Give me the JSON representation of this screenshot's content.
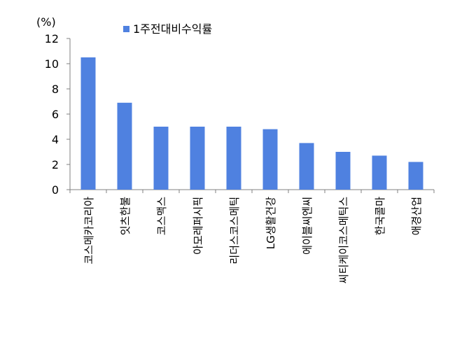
{
  "chart_data": {
    "type": "bar",
    "unit_label": "(%)",
    "categories": [
      "코스메카코리아",
      "잇츠한불",
      "코스맥스",
      "아모레퍼시픽",
      "리더스코스메틱",
      "LG생활건강",
      "에이블씨엔씨",
      "씨티케이코스메틱스",
      "한국콜마",
      "애경산업"
    ],
    "series": [
      {
        "name": "1주전대비수익률",
        "values": [
          10.5,
          6.9,
          5.0,
          5.0,
          5.0,
          4.8,
          3.7,
          3.0,
          2.7,
          2.2
        ]
      }
    ],
    "ylim": [
      0,
      12
    ],
    "yticks": [
      "0",
      "2",
      "4",
      "6",
      "8",
      "10",
      "12"
    ],
    "legend_position": "top",
    "grid": false,
    "bar_color": "#4F81E0"
  }
}
